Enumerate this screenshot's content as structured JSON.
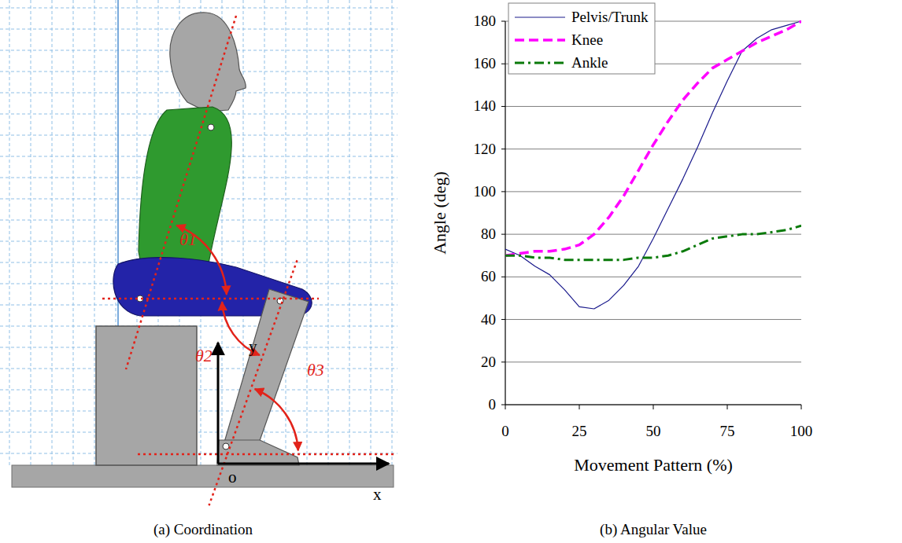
{
  "chart_data": {
    "type": "line",
    "title": "(b) Angular Value",
    "x_label": "Movement Pattern (%)",
    "y_label": "Angle (deg)",
    "x": [
      0,
      5,
      10,
      15,
      20,
      25,
      30,
      35,
      40,
      45,
      50,
      55,
      60,
      65,
      70,
      75,
      80,
      85,
      90,
      95,
      100
    ],
    "series": [
      {
        "name": "Pelvis/Trunk",
        "color": "#1a1a8c",
        "line_style": "solid",
        "values": [
          73,
          70,
          65,
          61,
          54,
          46,
          45,
          49,
          56,
          65,
          78,
          92,
          106,
          121,
          137,
          152,
          166,
          172,
          176,
          178,
          180
        ]
      },
      {
        "name": "Knee",
        "color": "#ff00ff",
        "line_style": "dashed",
        "values": [
          70,
          71,
          72,
          72,
          73,
          75,
          80,
          88,
          98,
          110,
          122,
          133,
          143,
          151,
          158,
          162,
          166,
          170,
          173,
          176,
          180
        ]
      },
      {
        "name": "Ankle",
        "color": "#0a7a0a",
        "line_style": "dashdot",
        "values": [
          70,
          70,
          69,
          69,
          68,
          68,
          68,
          68,
          68,
          69,
          69,
          70,
          72,
          75,
          78,
          79,
          80,
          80,
          81,
          82,
          84
        ]
      }
    ],
    "xlim": [
      0,
      100
    ],
    "xticks": [
      0,
      25,
      50,
      75,
      100
    ],
    "ylim": [
      0,
      180
    ],
    "yticks": [
      0,
      20,
      40,
      60,
      80,
      100,
      120,
      140,
      160,
      180
    ],
    "grid": true,
    "legend": "upper left"
  },
  "diagram": {
    "caption": "(a) Coordination",
    "angle_labels": [
      "θ1",
      "θ2",
      "θ3"
    ],
    "axis_labels": {
      "x": "x",
      "y": "y",
      "origin": "o"
    }
  }
}
